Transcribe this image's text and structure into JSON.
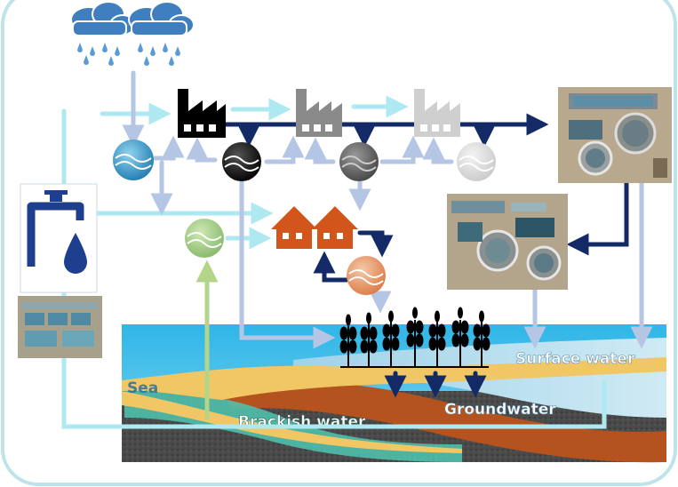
{
  "labels": {
    "sea": "Sea",
    "brackish": "Brackish water",
    "groundwater": "Groundwater",
    "surface": "Surface water"
  },
  "colors": {
    "frame": "#bfe3ea",
    "sky_blue": "#5bbde0",
    "light_arrow": "#aee8f0",
    "dark_arrow": "#142a66",
    "pale_arrow": "#b4c6e4",
    "green_arrow": "#b3d58a",
    "orange": "#d2561c",
    "tap": "#1d3f8d"
  },
  "icons": [
    "rain-cloud-icon",
    "factory-icon",
    "house-icon",
    "wheat-icon",
    "water-tap-icon",
    "water-drop-icon",
    "treatment-plant-photo"
  ]
}
